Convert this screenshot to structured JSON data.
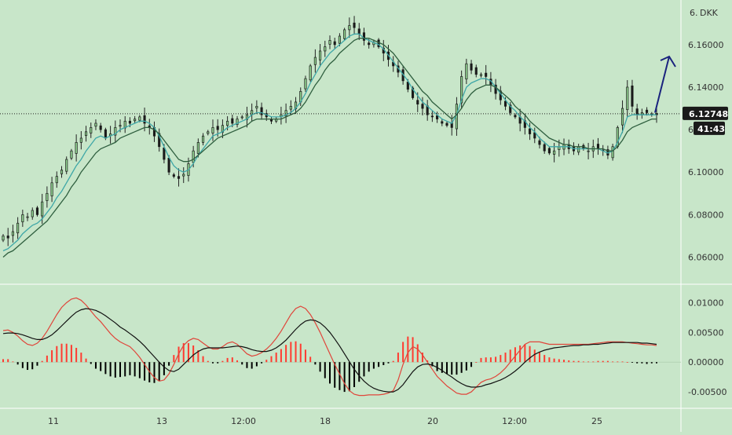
{
  "chart_data": [
    {
      "type": "candlestick",
      "panel": "price",
      "currency_label": "DKK",
      "y_ticks": [
        "6.06000",
        "6.08000",
        "6.10000",
        "6.14000",
        "6.16000"
      ],
      "ylim": [
        6.048,
        6.181
      ],
      "last_price": "6.12748",
      "countdown": "41:43",
      "close": [
        6.07,
        6.069,
        6.072,
        6.076,
        6.08,
        6.079,
        6.082,
        6.08,
        6.086,
        6.09,
        6.095,
        6.098,
        6.101,
        6.106,
        6.11,
        6.114,
        6.116,
        6.119,
        6.121,
        6.123,
        6.12,
        6.116,
        6.118,
        6.121,
        6.122,
        6.124,
        6.123,
        6.125,
        6.126,
        6.123,
        6.121,
        6.117,
        6.112,
        6.106,
        6.1,
        6.098,
        6.097,
        6.099,
        6.104,
        6.11,
        6.114,
        6.117,
        6.119,
        6.121,
        6.12,
        6.122,
        6.124,
        6.123,
        6.125,
        6.126,
        6.127,
        6.129,
        6.131,
        6.127,
        6.126,
        6.124,
        6.125,
        6.127,
        6.129,
        6.131,
        6.133,
        6.138,
        6.144,
        6.15,
        6.154,
        6.157,
        6.159,
        6.162,
        6.16,
        6.164,
        6.167,
        6.169,
        6.168,
        6.165,
        6.162,
        6.16,
        6.161,
        6.159,
        6.156,
        6.153,
        6.15,
        6.147,
        6.143,
        6.139,
        6.135,
        6.132,
        6.13,
        6.127,
        6.126,
        6.125,
        6.123,
        6.122,
        6.121,
        6.132,
        6.145,
        6.151,
        6.148,
        6.146,
        6.146,
        6.145,
        6.141,
        6.137,
        6.134,
        6.131,
        6.128,
        6.126,
        6.123,
        6.121,
        6.118,
        6.116,
        6.113,
        6.11,
        6.109,
        6.11,
        6.112,
        6.113,
        6.111,
        6.11,
        6.112,
        6.111,
        6.11,
        6.112,
        6.111,
        6.11,
        6.108,
        6.112,
        6.121,
        6.13,
        6.14,
        6.131,
        6.127,
        6.128,
        6.128,
        6.127,
        6.127
      ],
      "moving_averages": [
        {
          "name": "",
          "color": "#3ea7a7",
          "values": [
            6.063,
            6.064,
            6.066,
            6.068,
            6.071,
            6.073,
            6.075,
            6.076,
            6.078,
            6.081,
            6.084,
            6.088,
            6.091,
            6.095,
            6.099,
            6.103,
            6.106,
            6.11,
            6.113,
            6.116,
            6.117,
            6.116,
            6.117,
            6.118,
            6.12,
            6.121,
            6.122,
            6.123,
            6.124,
            6.124,
            6.123,
            6.121,
            6.117,
            6.112,
            6.107,
            6.103,
            6.101,
            6.1,
            6.101,
            6.104,
            6.108,
            6.111,
            6.114,
            6.117,
            6.118,
            6.119,
            6.121,
            6.122,
            6.123,
            6.124,
            6.125,
            6.127,
            6.128,
            6.128,
            6.127,
            6.126,
            6.126,
            6.126,
            6.127,
            6.128,
            6.13,
            6.133,
            6.137,
            6.142,
            6.146,
            6.15,
            6.153,
            6.156,
            6.158,
            6.16,
            6.162,
            6.164,
            6.165,
            6.165,
            6.163,
            6.162,
            6.161,
            6.16,
            6.158,
            6.155,
            6.152,
            6.149,
            6.146,
            6.143,
            6.139,
            6.136,
            6.133,
            6.131,
            6.129,
            6.127,
            6.125,
            6.124,
            6.123,
            6.127,
            6.134,
            6.14,
            6.142,
            6.143,
            6.144,
            6.144,
            6.143,
            6.14,
            6.137,
            6.134,
            6.131,
            6.129,
            6.126,
            6.124,
            6.121,
            6.119,
            6.116,
            6.114,
            6.112,
            6.112,
            6.112,
            6.112,
            6.112,
            6.111,
            6.111,
            6.111,
            6.111,
            6.111,
            6.111,
            6.11,
            6.109,
            6.11,
            6.114,
            6.119,
            6.126,
            6.127,
            6.127,
            6.127,
            6.127,
            6.127,
            6.127
          ]
        },
        {
          "name": "",
          "color": "#2f5f3f",
          "values": [
            6.06,
            6.062,
            6.063,
            6.065,
            6.067,
            6.069,
            6.071,
            6.073,
            6.075,
            6.077,
            6.08,
            6.083,
            6.086,
            6.089,
            6.093,
            6.096,
            6.1,
            6.103,
            6.106,
            6.109,
            6.111,
            6.112,
            6.113,
            6.114,
            6.116,
            6.117,
            6.118,
            6.119,
            6.12,
            6.121,
            6.121,
            6.12,
            6.118,
            6.115,
            6.112,
            6.109,
            6.106,
            6.105,
            6.105,
            6.106,
            6.108,
            6.11,
            6.112,
            6.114,
            6.116,
            6.117,
            6.118,
            6.119,
            6.12,
            6.121,
            6.122,
            6.124,
            6.125,
            6.125,
            6.125,
            6.125,
            6.125,
            6.125,
            6.126,
            6.127,
            6.128,
            6.13,
            6.133,
            6.137,
            6.141,
            6.144,
            6.148,
            6.151,
            6.153,
            6.156,
            6.158,
            6.16,
            6.162,
            6.163,
            6.163,
            6.163,
            6.162,
            6.161,
            6.16,
            6.158,
            6.156,
            6.153,
            6.15,
            6.147,
            6.144,
            6.141,
            6.138,
            6.136,
            6.133,
            6.131,
            6.129,
            6.127,
            6.125,
            6.127,
            6.13,
            6.134,
            6.137,
            6.139,
            6.14,
            6.141,
            6.141,
            6.14,
            6.138,
            6.136,
            6.134,
            6.131,
            6.129,
            6.127,
            6.124,
            6.122,
            6.12,
            6.118,
            6.116,
            6.115,
            6.114,
            6.113,
            6.113,
            6.112,
            6.112,
            6.112,
            6.111,
            6.111,
            6.111,
            6.111,
            6.11,
            6.11,
            6.112,
            6.115,
            6.119,
            6.121,
            6.122,
            6.123,
            6.124,
            6.125,
            6.125
          ]
        }
      ]
    },
    {
      "type": "macd",
      "panel": "oscillator",
      "y_ticks": [
        "0.01000",
        "0.00500",
        "0.00000",
        "-0.00500"
      ],
      "ylim": [
        -0.0075,
        0.0127
      ],
      "histogram_colors": {
        "positive": "#ff3b30",
        "negative": "#000000"
      },
      "macd_line": {
        "color": "#e0453a",
        "values": [
          0.0053,
          0.0054,
          0.005,
          0.0044,
          0.0036,
          0.003,
          0.0028,
          0.0032,
          0.004,
          0.0052,
          0.0066,
          0.008,
          0.0092,
          0.01,
          0.0106,
          0.0108,
          0.0104,
          0.0096,
          0.0086,
          0.0076,
          0.0068,
          0.0058,
          0.0048,
          0.004,
          0.0034,
          0.003,
          0.0026,
          0.0018,
          0.0008,
          -0.0004,
          -0.0016,
          -0.0026,
          -0.0032,
          -0.003,
          -0.002,
          -0.0004,
          0.0014,
          0.0028,
          0.0036,
          0.004,
          0.0038,
          0.0032,
          0.0026,
          0.0022,
          0.0022,
          0.0026,
          0.0032,
          0.0034,
          0.003,
          0.0022,
          0.0014,
          0.001,
          0.0012,
          0.0016,
          0.0022,
          0.003,
          0.004,
          0.0052,
          0.0066,
          0.008,
          0.009,
          0.0094,
          0.009,
          0.008,
          0.0066,
          0.005,
          0.0032,
          0.0014,
          -0.0004,
          -0.002,
          -0.0036,
          -0.0048,
          -0.0054,
          -0.0056,
          -0.0056,
          -0.0055,
          -0.0055,
          -0.0055,
          -0.0054,
          -0.0052,
          -0.0048,
          -0.003,
          -0.0004,
          0.0016,
          0.0026,
          0.0022,
          0.0012,
          0.0,
          -0.0012,
          -0.0024,
          -0.0032,
          -0.004,
          -0.0046,
          -0.0052,
          -0.0054,
          -0.0054,
          -0.005,
          -0.0042,
          -0.0034,
          -0.003,
          -0.0028,
          -0.0024,
          -0.0018,
          -0.001,
          0.0,
          0.001,
          0.002,
          0.003,
          0.0034,
          0.0034,
          0.0034,
          0.0032,
          0.003,
          0.003,
          0.003,
          0.003,
          0.003,
          0.003,
          0.003,
          0.003,
          0.003,
          0.0031,
          0.0032,
          0.0033,
          0.0034,
          0.0034,
          0.0034,
          0.0034,
          0.0033,
          0.0032,
          0.0031,
          0.003,
          0.0029,
          0.0029,
          0.0028
        ]
      },
      "signal_line": {
        "color": "#111111",
        "values": [
          0.0048,
          0.0049,
          0.0049,
          0.0048,
          0.0046,
          0.0043,
          0.004,
          0.0038,
          0.0038,
          0.0041,
          0.0046,
          0.0053,
          0.0061,
          0.0069,
          0.0077,
          0.0084,
          0.0088,
          0.009,
          0.0089,
          0.0087,
          0.0083,
          0.0078,
          0.0072,
          0.0066,
          0.0059,
          0.0054,
          0.0048,
          0.0042,
          0.0035,
          0.0027,
          0.0018,
          0.0009,
          0.0,
          -0.0008,
          -0.0014,
          -0.0016,
          -0.0012,
          -0.0004,
          0.0004,
          0.0012,
          0.0018,
          0.0022,
          0.0024,
          0.0024,
          0.0024,
          0.0024,
          0.0025,
          0.0026,
          0.0027,
          0.0026,
          0.0024,
          0.0021,
          0.0019,
          0.0018,
          0.0018,
          0.002,
          0.0024,
          0.003,
          0.0037,
          0.0046,
          0.0055,
          0.0063,
          0.0069,
          0.0071,
          0.007,
          0.0066,
          0.0059,
          0.005,
          0.0039,
          0.0027,
          0.0014,
          0.0001,
          -0.0012,
          -0.0023,
          -0.0032,
          -0.0039,
          -0.0044,
          -0.0047,
          -0.0049,
          -0.005,
          -0.005,
          -0.0046,
          -0.0038,
          -0.0027,
          -0.0016,
          -0.0008,
          -0.0004,
          -0.0003,
          -0.0005,
          -0.0009,
          -0.0014,
          -0.002,
          -0.0025,
          -0.0031,
          -0.0036,
          -0.004,
          -0.0042,
          -0.0042,
          -0.0041,
          -0.0038,
          -0.0036,
          -0.0033,
          -0.003,
          -0.0026,
          -0.0021,
          -0.0015,
          -0.0008,
          0.0,
          0.0007,
          0.0013,
          0.0017,
          0.002,
          0.0022,
          0.0024,
          0.0025,
          0.0026,
          0.0027,
          0.0028,
          0.0028,
          0.0029,
          0.0029,
          0.003,
          0.003,
          0.0031,
          0.0032,
          0.0033,
          0.0033,
          0.0033,
          0.0033,
          0.0033,
          0.0033,
          0.0032,
          0.0032,
          0.0031,
          0.003
        ]
      }
    }
  ],
  "x_axis_labels": [
    "11",
    "13",
    "12:00",
    "18",
    "20",
    "12:00",
    "25"
  ]
}
